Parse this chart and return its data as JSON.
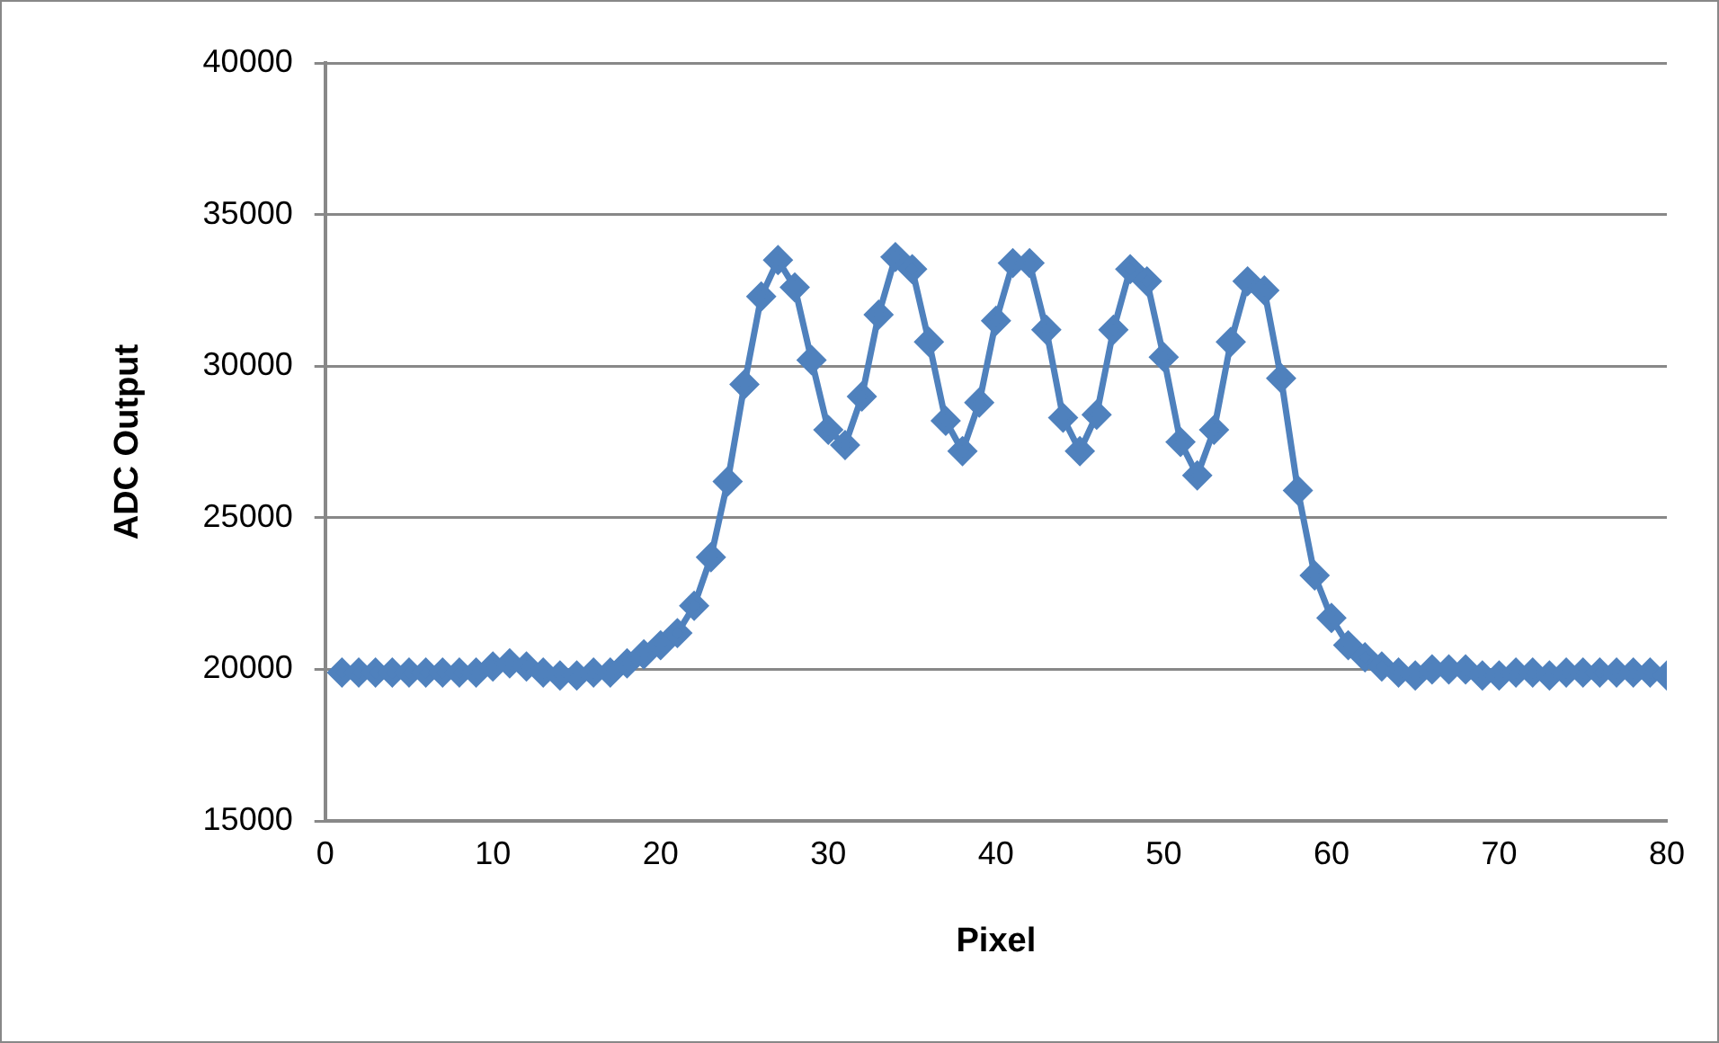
{
  "chart_data": {
    "type": "line",
    "xlabel": "Pixel",
    "ylabel": "ADC Output",
    "x": [
      1,
      2,
      3,
      4,
      5,
      6,
      7,
      8,
      9,
      10,
      11,
      12,
      13,
      14,
      15,
      16,
      17,
      18,
      19,
      20,
      21,
      22,
      23,
      24,
      25,
      26,
      27,
      28,
      29,
      30,
      31,
      32,
      33,
      34,
      35,
      36,
      37,
      38,
      39,
      40,
      41,
      42,
      43,
      44,
      45,
      46,
      47,
      48,
      49,
      50,
      51,
      52,
      53,
      54,
      55,
      56,
      57,
      58,
      59,
      60,
      61,
      62,
      63,
      64,
      65,
      66,
      67,
      68,
      69,
      70,
      71,
      72,
      73,
      74,
      75,
      76,
      77,
      78,
      79,
      80
    ],
    "series": [
      {
        "color": "#4f81bd",
        "values": [
          19900,
          19900,
          19900,
          19900,
          19900,
          19900,
          19900,
          19900,
          19900,
          20100,
          20200,
          20100,
          19900,
          19800,
          19800,
          19900,
          19900,
          20200,
          20500,
          20800,
          21200,
          22100,
          23700,
          26200,
          29400,
          32300,
          33500,
          32600,
          30200,
          27900,
          27400,
          29000,
          31700,
          33600,
          33200,
          30800,
          28200,
          27200,
          28800,
          31500,
          33400,
          33400,
          31200,
          28300,
          27200,
          28400,
          31200,
          33200,
          32800,
          30300,
          27500,
          26400,
          27900,
          30800,
          32800,
          32500,
          29600,
          25900,
          23100,
          21700,
          20800,
          20400,
          20100,
          19900,
          19800,
          20000,
          20000,
          20000,
          19800,
          19800,
          19900,
          19900,
          19800,
          19900,
          19900,
          19900,
          19900,
          19900,
          19900,
          19800
        ]
      }
    ],
    "xlim": [
      0,
      80
    ],
    "xticks": [
      0,
      10,
      20,
      30,
      40,
      50,
      60,
      70,
      80
    ],
    "ylim": [
      15000,
      40000
    ],
    "yticks": [
      15000,
      20000,
      25000,
      30000,
      35000,
      40000
    ],
    "grid": "y",
    "legend": false,
    "marker": "diamond",
    "line_style": "solid"
  }
}
